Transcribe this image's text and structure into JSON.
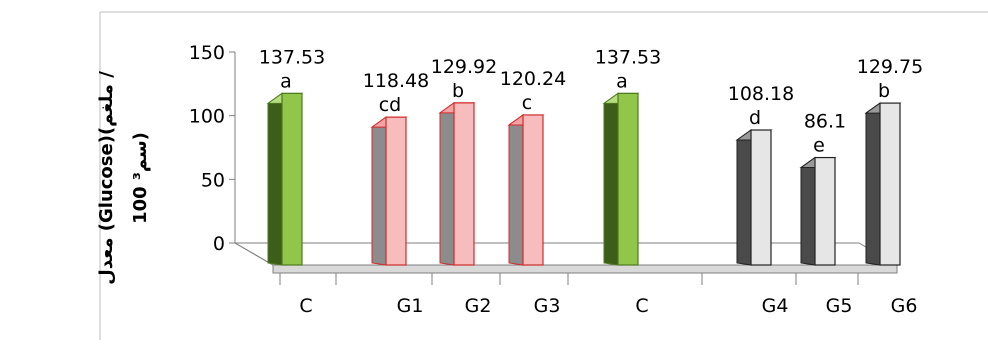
{
  "chart_data": {
    "type": "bar",
    "title": "",
    "xlabel": "",
    "ylabel_line1": "معدل (Glucose)(ملغم /",
    "ylabel_line2": "100 سم³)",
    "ylim": [
      0,
      150
    ],
    "yticks": [
      0,
      50,
      100,
      150
    ],
    "categories": [
      "C",
      "G1",
      "G2",
      "G3",
      "C",
      "G4",
      "G5",
      "G6"
    ],
    "values": [
      137.53,
      118.48,
      129.92,
      120.24,
      137.53,
      108.18,
      86.1,
      129.75
    ],
    "value_labels": [
      "137.53",
      "118.48",
      "129.92",
      "120.24",
      "137.53",
      "108.18",
      "86.1",
      "129.75"
    ],
    "group_letters": [
      "a",
      "cd",
      "b",
      "c",
      "a",
      "d",
      "e",
      "b"
    ],
    "bar_styles": [
      "green",
      "pink",
      "pink",
      "pink",
      "green",
      "gray",
      "gray",
      "gray"
    ],
    "grid": false,
    "legend": "none",
    "colors": {
      "green_face": "#92c64a",
      "green_side": "#3d5e19",
      "pink_face": "#f7bcbc",
      "pink_side": "#8c8c8c",
      "pink_edge": "#d22b2b",
      "gray_face": "#e6e6e6",
      "gray_side": "#4a4a4a",
      "gray_edge": "#222222"
    }
  }
}
